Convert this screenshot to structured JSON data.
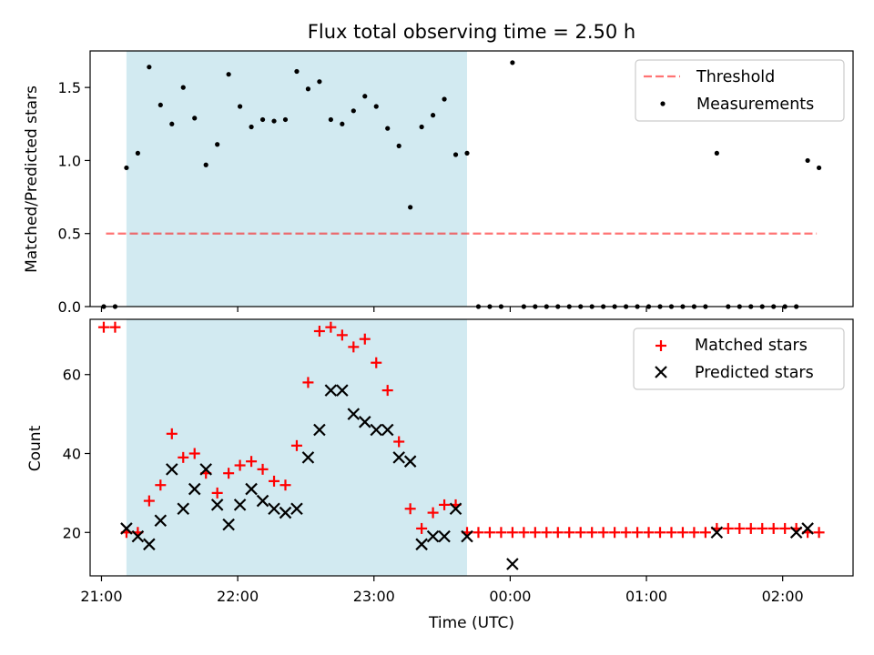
{
  "chart_data": [
    {
      "type": "scatter",
      "title": "Flux total observing time = 2.50 h",
      "ylabel": "Matched/Predicted stars",
      "xlabel": "",
      "xlim": [
        "20:55",
        "02:31"
      ],
      "ylim": [
        0,
        1.75
      ],
      "yticks": [
        0.0,
        0.5,
        1.0,
        1.5
      ],
      "ytick_labels": [
        "0.0",
        "0.5",
        "1.0",
        "1.5"
      ],
      "shaded_region": {
        "x0": "21:11",
        "x1": "23:41",
        "color": "#add8e6"
      },
      "legend": {
        "placement": "top-right",
        "entries": [
          "Threshold",
          "Measurements"
        ]
      },
      "threshold": {
        "name": "Threshold",
        "x": [
          "21:02",
          "02:15"
        ],
        "y": 0.5,
        "color": "#ff0000",
        "style": "dashed"
      },
      "series": [
        {
          "name": "Measurements",
          "color": "#000000",
          "marker": "dot",
          "x": [
            "21:01",
            "21:06",
            "21:11",
            "21:16",
            "21:21",
            "21:26",
            "21:31",
            "21:36",
            "21:41",
            "21:46",
            "21:51",
            "21:56",
            "22:01",
            "22:06",
            "22:11",
            "22:16",
            "22:21",
            "22:26",
            "22:31",
            "22:36",
            "22:41",
            "22:46",
            "22:51",
            "22:56",
            "23:01",
            "23:06",
            "23:11",
            "23:16",
            "23:21",
            "23:26",
            "23:31",
            "23:36",
            "23:41",
            "23:46",
            "23:51",
            "23:56",
            "00:01",
            "00:06",
            "00:11",
            "00:16",
            "00:21",
            "00:26",
            "00:31",
            "00:36",
            "00:41",
            "00:46",
            "00:51",
            "00:56",
            "01:01",
            "01:06",
            "01:11",
            "01:16",
            "01:21",
            "01:26",
            "01:31",
            "01:36",
            "01:41",
            "01:46",
            "01:51",
            "01:56",
            "02:01",
            "02:06",
            "02:11",
            "02:16"
          ],
          "y": [
            0.0,
            0.0,
            0.95,
            1.05,
            1.64,
            1.38,
            1.25,
            1.5,
            1.29,
            0.97,
            1.11,
            1.59,
            1.37,
            1.23,
            1.28,
            1.27,
            1.28,
            1.61,
            1.49,
            1.54,
            1.28,
            1.25,
            1.34,
            1.44,
            1.37,
            1.22,
            1.1,
            0.68,
            1.23,
            1.31,
            1.42,
            1.04,
            1.05,
            0.0,
            0.0,
            0.0,
            1.67,
            0.0,
            0.0,
            0.0,
            0.0,
            0.0,
            0.0,
            0.0,
            0.0,
            0.0,
            0.0,
            0.0,
            0.0,
            0.0,
            0.0,
            0.0,
            0.0,
            0.0,
            1.05,
            0.0,
            0.0,
            0.0,
            0.0,
            0.0,
            0.0,
            0.0,
            1.0,
            0.95
          ]
        }
      ]
    },
    {
      "type": "scatter",
      "title": "",
      "xlabel": "Time (UTC)",
      "ylabel": "Count",
      "xlim": [
        "20:55",
        "02:31"
      ],
      "ylim": [
        9,
        74
      ],
      "xticks": [
        "21:00",
        "22:00",
        "23:00",
        "00:00",
        "01:00",
        "02:00"
      ],
      "yticks": [
        20,
        40,
        60
      ],
      "ytick_labels": [
        "20",
        "40",
        "60"
      ],
      "shaded_region": {
        "x0": "21:11",
        "x1": "23:41",
        "color": "#add8e6"
      },
      "legend": {
        "placement": "top-right",
        "entries": [
          "Matched stars",
          "Predicted stars"
        ]
      },
      "series": [
        {
          "name": "Matched stars",
          "color": "#ff0000",
          "marker": "plus",
          "x": [
            "21:01",
            "21:06",
            "21:11",
            "21:16",
            "21:21",
            "21:26",
            "21:31",
            "21:36",
            "21:41",
            "21:46",
            "21:51",
            "21:56",
            "22:01",
            "22:06",
            "22:11",
            "22:16",
            "22:21",
            "22:26",
            "22:31",
            "22:36",
            "22:41",
            "22:46",
            "22:51",
            "22:56",
            "23:01",
            "23:06",
            "23:11",
            "23:16",
            "23:21",
            "23:26",
            "23:31",
            "23:36",
            "23:41",
            "23:46",
            "23:51",
            "23:56",
            "00:01",
            "00:06",
            "00:11",
            "00:16",
            "00:21",
            "00:26",
            "00:31",
            "00:36",
            "00:41",
            "00:46",
            "00:51",
            "00:56",
            "01:01",
            "01:06",
            "01:11",
            "01:16",
            "01:21",
            "01:26",
            "01:31",
            "01:36",
            "01:41",
            "01:46",
            "01:51",
            "01:56",
            "02:01",
            "02:06",
            "02:11",
            "02:16"
          ],
          "y": [
            72,
            72,
            20,
            20,
            28,
            32,
            45,
            39,
            40,
            35,
            30,
            35,
            37,
            38,
            36,
            33,
            32,
            42,
            58,
            71,
            72,
            70,
            67,
            69,
            63,
            56,
            43,
            26,
            21,
            25,
            27,
            27,
            20,
            20,
            20,
            20,
            20,
            20,
            20,
            20,
            20,
            20,
            20,
            20,
            20,
            20,
            20,
            20,
            20,
            20,
            20,
            20,
            20,
            20,
            21,
            21,
            21,
            21,
            21,
            21,
            21,
            21,
            20,
            20
          ]
        },
        {
          "name": "Predicted stars",
          "color": "#000000",
          "marker": "x",
          "x": [
            "21:11",
            "21:16",
            "21:21",
            "21:26",
            "21:31",
            "21:36",
            "21:41",
            "21:46",
            "21:51",
            "21:56",
            "22:01",
            "22:06",
            "22:11",
            "22:16",
            "22:21",
            "22:26",
            "22:31",
            "22:36",
            "22:41",
            "22:46",
            "22:51",
            "22:56",
            "23:01",
            "23:06",
            "23:11",
            "23:16",
            "23:21",
            "23:26",
            "23:31",
            "23:36",
            "23:41",
            "00:01",
            "01:31",
            "02:06",
            "02:11"
          ],
          "y": [
            21,
            19,
            17,
            23,
            36,
            26,
            31,
            36,
            27,
            22,
            27,
            31,
            28,
            26,
            25,
            26,
            39,
            46,
            56,
            56,
            50,
            48,
            46,
            46,
            39,
            38,
            17,
            19,
            19,
            26,
            19,
            12,
            20,
            20,
            21
          ]
        }
      ]
    }
  ]
}
